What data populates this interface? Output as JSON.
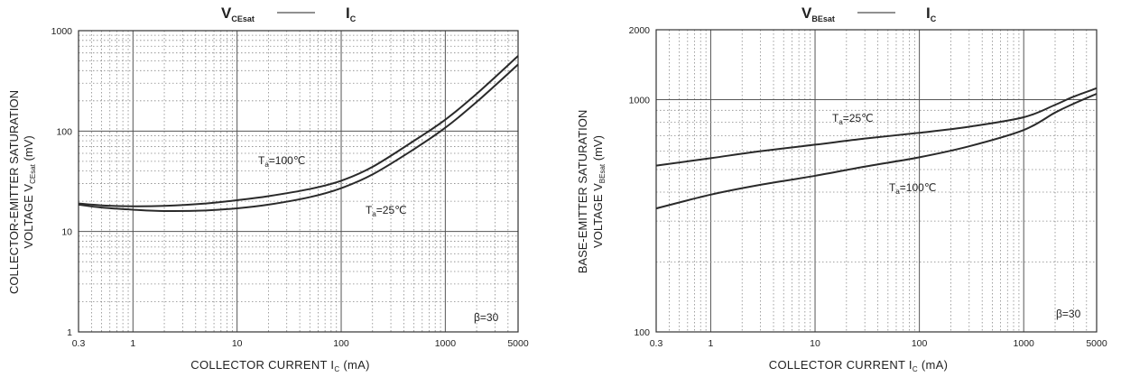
{
  "chart_data": [
    {
      "type": "line",
      "title": {
        "main": "V",
        "main_sub": "CEsat",
        "vs": "I",
        "vs_sub": "C"
      },
      "ylabel_line1": "COLLECTOR-EMITTER SATURATION",
      "ylabel_line2": "VOLTAGE  V",
      "ylabel_sub": "CEsat",
      "ylabel_unit": "(mV)",
      "xlabel": "COLLECTOR CURRENT I",
      "xlabel_sub": "C",
      "xlabel_unit": "(mA)",
      "x_scale": "log",
      "y_scale": "log",
      "xlim": [
        0.3,
        5000
      ],
      "ylim": [
        1,
        1000
      ],
      "x_ticks": [
        0.3,
        1,
        10,
        100,
        1000,
        5000
      ],
      "x_tick_labels": [
        "0.3",
        "1",
        "10",
        "100",
        "1000",
        "5000"
      ],
      "y_ticks": [
        1,
        10,
        100,
        1000
      ],
      "y_tick_labels": [
        "1",
        "10",
        "100",
        "1000"
      ],
      "grid": true,
      "note": "β=30",
      "series": [
        {
          "name": "Ta=100℃",
          "label_main": "T",
          "label_sub": "a",
          "label_rest": "=100℃",
          "x": [
            0.3,
            0.5,
            1,
            2,
            5,
            10,
            20,
            50,
            100,
            200,
            500,
            1000,
            2000,
            5000
          ],
          "y": [
            19,
            18.2,
            17.8,
            18,
            19,
            20.5,
            22.5,
            26.5,
            32,
            44,
            80,
            130,
            235,
            560
          ]
        },
        {
          "name": "Ta=25℃",
          "label_main": "T",
          "label_sub": "a",
          "label_rest": "=25℃",
          "x": [
            0.3,
            0.5,
            1,
            2,
            5,
            10,
            20,
            50,
            100,
            200,
            500,
            1000,
            2000,
            5000
          ],
          "y": [
            18.5,
            17.3,
            16.5,
            16,
            16.2,
            17,
            18.5,
            22,
            27,
            37,
            66,
            108,
            195,
            460
          ]
        }
      ]
    },
    {
      "type": "line",
      "title": {
        "main": "V",
        "main_sub": "BEsat",
        "vs": "I",
        "vs_sub": "C"
      },
      "ylabel_line1": "BASE-EMITTER SATURATION",
      "ylabel_line2": "VOLTAGE  V",
      "ylabel_sub": "BEsat",
      "ylabel_unit": "(mV)",
      "xlabel": "COLLECTOR CURRENT I",
      "xlabel_sub": "C",
      "xlabel_unit": "(mA)",
      "x_scale": "log",
      "y_scale": "log",
      "xlim": [
        0.3,
        5000
      ],
      "ylim": [
        100,
        2000
      ],
      "x_ticks": [
        0.3,
        1,
        10,
        100,
        1000,
        5000
      ],
      "x_tick_labels": [
        "0.3",
        "1",
        "10",
        "100",
        "1000",
        "5000"
      ],
      "y_ticks": [
        100,
        1000,
        2000
      ],
      "y_tick_labels": [
        "100",
        "1000",
        "2000"
      ],
      "grid": true,
      "note": "β=30",
      "series": [
        {
          "name": "Ta=25℃",
          "label_main": "T",
          "label_sub": "a",
          "label_rest": "=25℃",
          "x": [
            0.3,
            1,
            3,
            10,
            30,
            100,
            300,
            1000,
            2000,
            3000,
            5000
          ],
          "y": [
            520,
            560,
            600,
            640,
            680,
            720,
            765,
            840,
            950,
            1030,
            1120
          ]
        },
        {
          "name": "Ta=100℃",
          "label_main": "T",
          "label_sub": "a",
          "label_rest": "=100℃",
          "x": [
            0.3,
            1,
            3,
            10,
            30,
            100,
            300,
            1000,
            2000,
            3000,
            5000
          ],
          "y": [
            340,
            390,
            430,
            470,
            515,
            565,
            630,
            740,
            880,
            960,
            1060
          ]
        }
      ]
    }
  ]
}
